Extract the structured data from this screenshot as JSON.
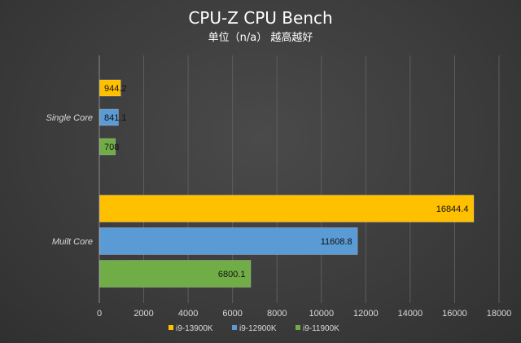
{
  "chart_data": {
    "type": "bar",
    "orientation": "horizontal",
    "title": "CPU-Z CPU Bench",
    "subtitle": "单位（n/a） 越高越好",
    "categories": [
      "Single Core",
      "Muilt Core"
    ],
    "series": [
      {
        "name": "i9-13900K",
        "color": "#ffc000",
        "values": [
          944.2,
          16844.4
        ],
        "labels": [
          "944.2",
          "16844.4"
        ]
      },
      {
        "name": "i9-12900K",
        "color": "#5b9bd5",
        "values": [
          841.1,
          11608.8
        ],
        "labels": [
          "841.1",
          "11608.8"
        ]
      },
      {
        "name": "i9-11900K",
        "color": "#70ad47",
        "values": [
          708,
          6800.1
        ],
        "labels": [
          "708",
          "6800.1"
        ]
      }
    ],
    "xlim": [
      0,
      18000
    ],
    "xticks": [
      "0",
      "2000",
      "4000",
      "6000",
      "8000",
      "10000",
      "12000",
      "14000",
      "16000",
      "18000"
    ],
    "grid": true,
    "legend_position": "bottom"
  }
}
